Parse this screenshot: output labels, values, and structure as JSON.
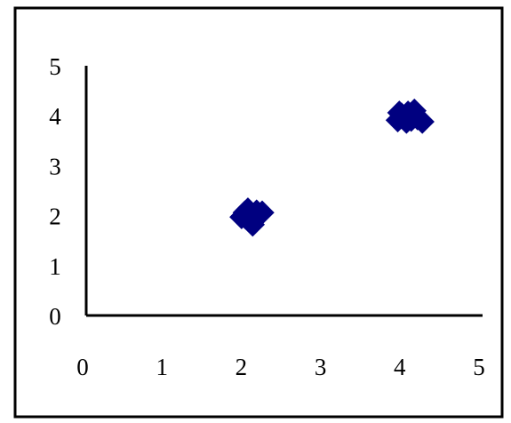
{
  "chart_data": {
    "type": "scatter",
    "title": "",
    "xlabel": "",
    "ylabel": "",
    "xlim": [
      0,
      5
    ],
    "ylim": [
      0,
      5
    ],
    "x_ticks": [
      "0",
      "1",
      "2",
      "3",
      "4",
      "5"
    ],
    "y_ticks": [
      "0",
      "1",
      "2",
      "3",
      "4",
      "5"
    ],
    "grid": false,
    "legend": "none",
    "marker": "diamond",
    "marker_color": "#000080",
    "series": [
      {
        "points": [
          {
            "x": 1.96,
            "y": 1.97
          },
          {
            "x": 2.0,
            "y": 2.06
          },
          {
            "x": 2.04,
            "y": 2.12
          },
          {
            "x": 2.08,
            "y": 2.0
          },
          {
            "x": 2.11,
            "y": 1.91
          },
          {
            "x": 2.05,
            "y": 1.94
          },
          {
            "x": 2.15,
            "y": 2.08
          },
          {
            "x": 2.22,
            "y": 2.06
          },
          {
            "x": 2.1,
            "y": 1.82
          },
          {
            "x": 2.01,
            "y": 1.96
          },
          {
            "x": 3.93,
            "y": 3.91
          },
          {
            "x": 3.95,
            "y": 4.06
          },
          {
            "x": 4.0,
            "y": 3.97
          },
          {
            "x": 4.06,
            "y": 4.06
          },
          {
            "x": 4.1,
            "y": 3.92
          },
          {
            "x": 4.14,
            "y": 4.1
          },
          {
            "x": 4.18,
            "y": 3.95
          },
          {
            "x": 4.24,
            "y": 3.88
          },
          {
            "x": 4.04,
            "y": 3.88
          },
          {
            "x": 3.98,
            "y": 4.02
          }
        ]
      }
    ]
  }
}
